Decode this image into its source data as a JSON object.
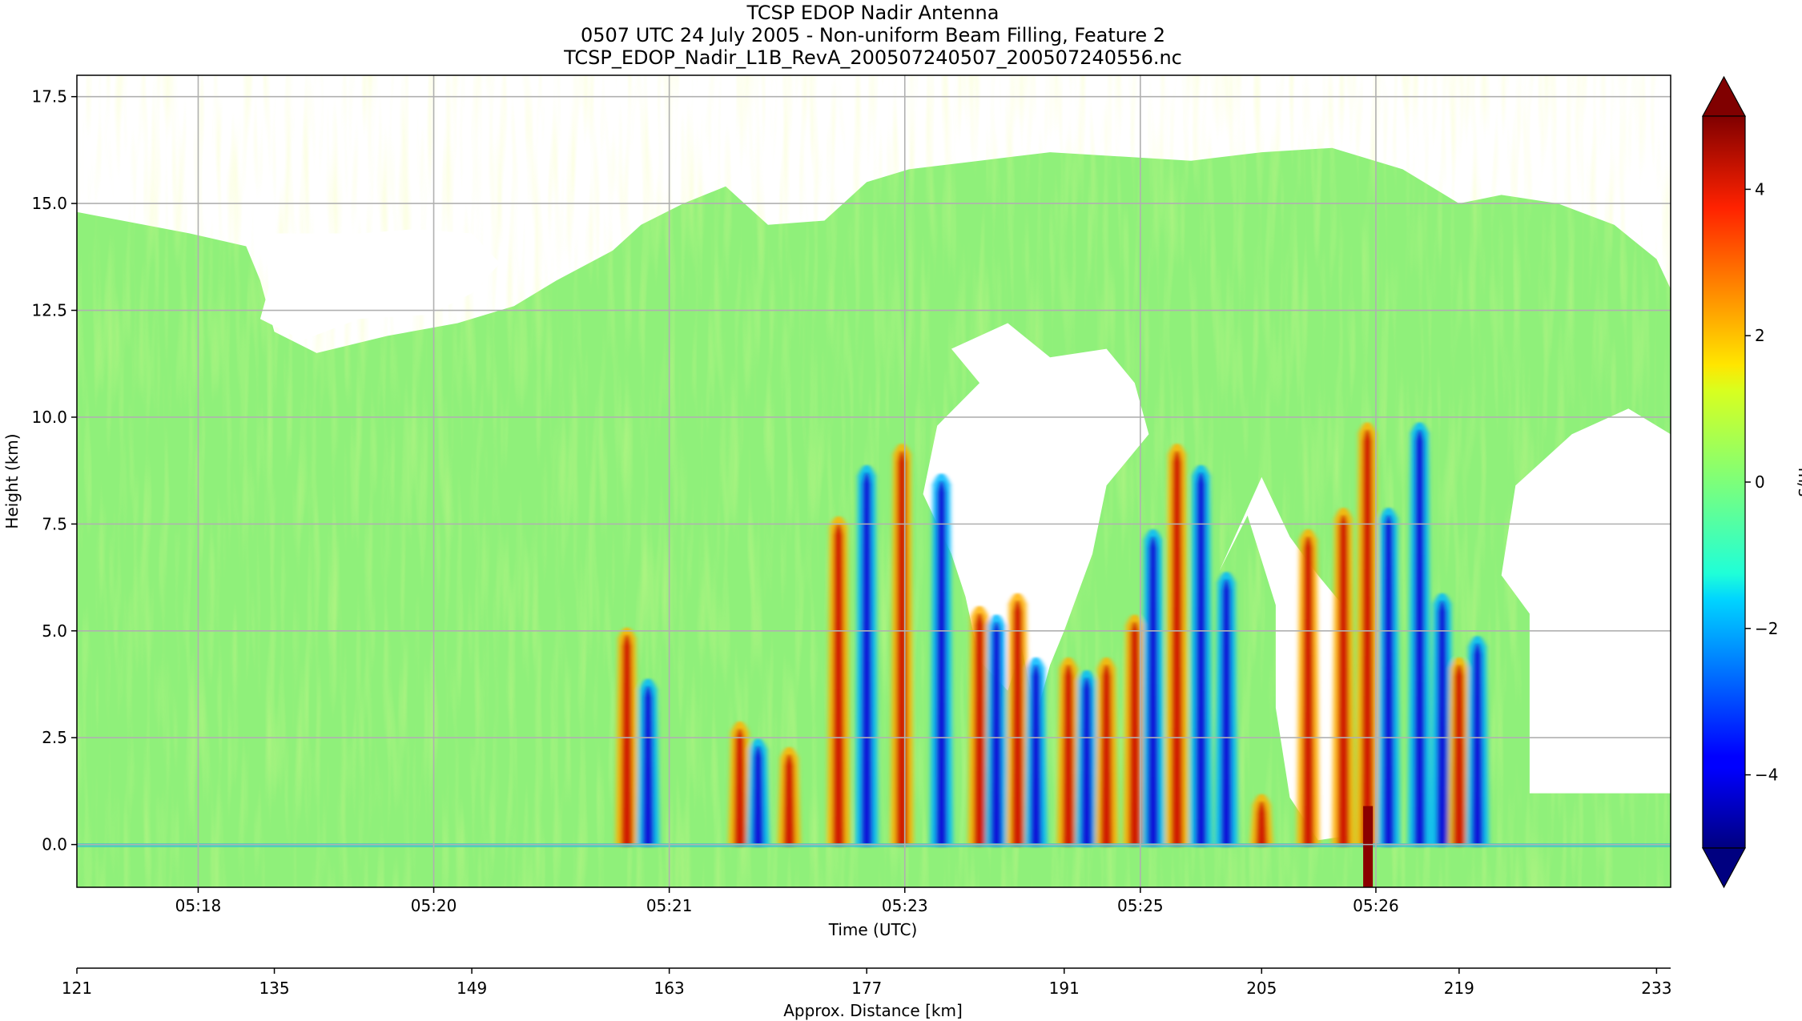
{
  "figure": {
    "title_lines": [
      "TCSP EDOP Nadir Antenna",
      "0507 UTC 24 July 2005 - Non-uniform Beam Filling, Feature 2",
      "TCSP_EDOP_Nadir_L1B_RevA_200507240507_200507240556.nc"
    ]
  },
  "chart_data": {
    "type": "heatmap",
    "title": "TCSP EDOP Nadir Antenna",
    "subtitle": "0507 UTC 24 July 2005 - Non-uniform Beam Filling, Feature 2",
    "file": "TCSP_EDOP_Nadir_L1B_RevA_200507240507_200507240556.nc",
    "xlabel": "Time (UTC)",
    "ylabel": "Height (km)",
    "x_ticks": [
      "05:18",
      "05:20",
      "05:21",
      "05:23",
      "05:25",
      "05:26"
    ],
    "x_tick_positions_km": [
      129.6,
      146.3,
      163.0,
      179.7,
      196.4,
      213.1
    ],
    "y_ticks": [
      "0.0",
      "2.5",
      "5.0",
      "7.5",
      "10.0",
      "12.5",
      "15.0",
      "17.5"
    ],
    "y_tick_values": [
      0.0,
      2.5,
      5.0,
      7.5,
      10.0,
      12.5,
      15.0,
      17.5
    ],
    "xlim_km": [
      121,
      221
    ],
    "ylim": [
      -1.0,
      18.0
    ],
    "secondary_xlabel": "Approx. Distance [km]",
    "secondary_ticks": [
      "121",
      "135",
      "149",
      "163",
      "177",
      "191",
      "205",
      "219",
      "233"
    ],
    "secondary_tick_values": [
      121,
      135,
      149,
      163,
      177,
      191,
      205,
      219,
      233
    ],
    "secondary_xlim": [
      121,
      234
    ],
    "colorbar": {
      "label": "m/s",
      "range": [
        -5,
        5
      ],
      "ticks": [
        "−4",
        "−2",
        "0",
        "2",
        "4"
      ],
      "tick_values": [
        -4,
        -2,
        0,
        2,
        4
      ],
      "colormap": "jet",
      "extend": "both"
    },
    "grid": true,
    "features": {
      "cloud_top_km": [
        [
          121,
          14.8
        ],
        [
          129,
          14.3
        ],
        [
          133,
          14.0
        ],
        [
          134,
          13.2
        ],
        [
          135,
          12.0
        ],
        [
          138,
          11.5
        ],
        [
          143,
          11.9
        ],
        [
          148,
          12.2
        ],
        [
          152,
          12.6
        ],
        [
          155,
          13.2
        ],
        [
          159,
          13.9
        ],
        [
          161,
          14.5
        ],
        [
          164,
          15.0
        ],
        [
          167,
          15.4
        ],
        [
          170,
          14.5
        ],
        [
          174,
          14.6
        ],
        [
          177,
          15.5
        ],
        [
          180,
          15.8
        ],
        [
          185,
          16.0
        ],
        [
          190,
          16.2
        ],
        [
          195,
          16.1
        ],
        [
          200,
          16.0
        ],
        [
          205,
          16.2
        ],
        [
          210,
          16.3
        ],
        [
          215,
          15.8
        ],
        [
          219,
          15.0
        ],
        [
          222,
          15.2
        ],
        [
          226,
          15.0
        ],
        [
          230,
          14.5
        ],
        [
          233,
          13.7
        ],
        [
          234,
          13.0
        ]
      ],
      "echo_gaps": [
        [
          [
            134,
            14.3
          ],
          [
            141,
            14.3
          ],
          [
            145,
            14.4
          ],
          [
            149,
            14.3
          ],
          [
            151,
            13.6
          ],
          [
            149,
            12.9
          ],
          [
            146,
            12.4
          ],
          [
            141,
            12.3
          ],
          [
            137,
            11.8
          ],
          [
            134,
            12.3
          ],
          [
            135,
            13.5
          ]
        ],
        [
          [
            183,
            11.6
          ],
          [
            187,
            12.2
          ],
          [
            190,
            11.4
          ],
          [
            194,
            11.6
          ],
          [
            196,
            10.8
          ],
          [
            197,
            9.6
          ],
          [
            194,
            8.4
          ],
          [
            193,
            6.8
          ],
          [
            191,
            5.0
          ],
          [
            190,
            4.2
          ],
          [
            189,
            3.0
          ],
          [
            188,
            4.6
          ],
          [
            187,
            3.6
          ],
          [
            185,
            4.3
          ],
          [
            184,
            5.8
          ],
          [
            183,
            6.8
          ],
          [
            181,
            8.2
          ],
          [
            182,
            9.8
          ],
          [
            185,
            10.8
          ]
        ],
        [
          [
            202,
            6.4
          ],
          [
            204,
            7.7
          ],
          [
            206,
            5.6
          ],
          [
            206,
            3.2
          ],
          [
            207,
            1.1
          ],
          [
            209,
            0.1
          ],
          [
            211,
            0.2
          ],
          [
            211,
            5.5
          ],
          [
            209,
            6.3
          ],
          [
            207,
            7.2
          ],
          [
            205,
            8.6
          ]
        ],
        [
          [
            223,
            8.4
          ],
          [
            227,
            9.6
          ],
          [
            231,
            10.2
          ],
          [
            234,
            9.6
          ],
          [
            234,
            1.2
          ],
          [
            224,
            1.2
          ],
          [
            224,
            5.4
          ],
          [
            222,
            6.3
          ]
        ]
      ],
      "updraft_downdraft_cores": [
        {
          "x_km": 160.0,
          "top_km": 5.2,
          "sign": "up"
        },
        {
          "x_km": 161.5,
          "top_km": 4.0,
          "sign": "down"
        },
        {
          "x_km": 168.0,
          "top_km": 3.0,
          "sign": "up"
        },
        {
          "x_km": 169.3,
          "top_km": 2.6,
          "sign": "down"
        },
        {
          "x_km": 171.5,
          "top_km": 2.4,
          "sign": "up"
        },
        {
          "x_km": 175.0,
          "top_km": 7.8,
          "sign": "up"
        },
        {
          "x_km": 177.0,
          "top_km": 9.0,
          "sign": "down"
        },
        {
          "x_km": 179.5,
          "top_km": 9.5,
          "sign": "up"
        },
        {
          "x_km": 182.3,
          "top_km": 8.8,
          "sign": "down"
        },
        {
          "x_km": 185.0,
          "top_km": 5.7,
          "sign": "up"
        },
        {
          "x_km": 186.2,
          "top_km": 5.5,
          "sign": "down"
        },
        {
          "x_km": 187.7,
          "top_km": 6.0,
          "sign": "up"
        },
        {
          "x_km": 189.0,
          "top_km": 4.5,
          "sign": "down"
        },
        {
          "x_km": 191.3,
          "top_km": 4.5,
          "sign": "up"
        },
        {
          "x_km": 192.6,
          "top_km": 4.2,
          "sign": "down"
        },
        {
          "x_km": 194.0,
          "top_km": 4.5,
          "sign": "up"
        },
        {
          "x_km": 196.0,
          "top_km": 5.5,
          "sign": "up"
        },
        {
          "x_km": 197.3,
          "top_km": 7.5,
          "sign": "down"
        },
        {
          "x_km": 199.0,
          "top_km": 9.5,
          "sign": "up"
        },
        {
          "x_km": 200.7,
          "top_km": 9.0,
          "sign": "down"
        },
        {
          "x_km": 202.5,
          "top_km": 6.5,
          "sign": "down"
        },
        {
          "x_km": 205.0,
          "top_km": 1.3,
          "sign": "up"
        },
        {
          "x_km": 208.3,
          "top_km": 7.5,
          "sign": "up"
        },
        {
          "x_km": 210.8,
          "top_km": 8.0,
          "sign": "up"
        },
        {
          "x_km": 212.5,
          "top_km": 10.0,
          "sign": "up"
        },
        {
          "x_km": 214.0,
          "top_km": 8.0,
          "sign": "down"
        },
        {
          "x_km": 216.2,
          "top_km": 10.0,
          "sign": "down"
        },
        {
          "x_km": 217.8,
          "top_km": 6.0,
          "sign": "down"
        },
        {
          "x_km": 219.0,
          "top_km": 4.5,
          "sign": "up"
        },
        {
          "x_km": 220.3,
          "top_km": 5.0,
          "sign": "down"
        }
      ]
    }
  }
}
